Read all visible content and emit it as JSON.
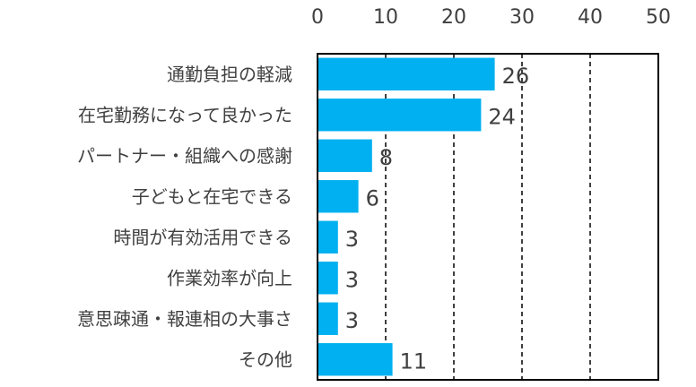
{
  "chart_data": {
    "type": "bar",
    "orientation": "horizontal",
    "categories": [
      "通勤負担の軽減",
      "在宅勤務になって良かった",
      "パートナー・組織への感謝",
      "子どもと在宅できる",
      "時間が有効活用できる",
      "作業効率が向上",
      "意思疎通・報連相の大事さ",
      "その他"
    ],
    "values": [
      26,
      24,
      8,
      6,
      3,
      3,
      3,
      11
    ],
    "xlim": [
      0,
      50
    ],
    "xticks": [
      0,
      10,
      20,
      30,
      40,
      50
    ],
    "grid": true,
    "grid_style": "dashed",
    "axis_position": "top",
    "bar_color": "#00b0f0",
    "show_value_labels": true,
    "title": "",
    "xlabel": "",
    "ylabel": ""
  }
}
